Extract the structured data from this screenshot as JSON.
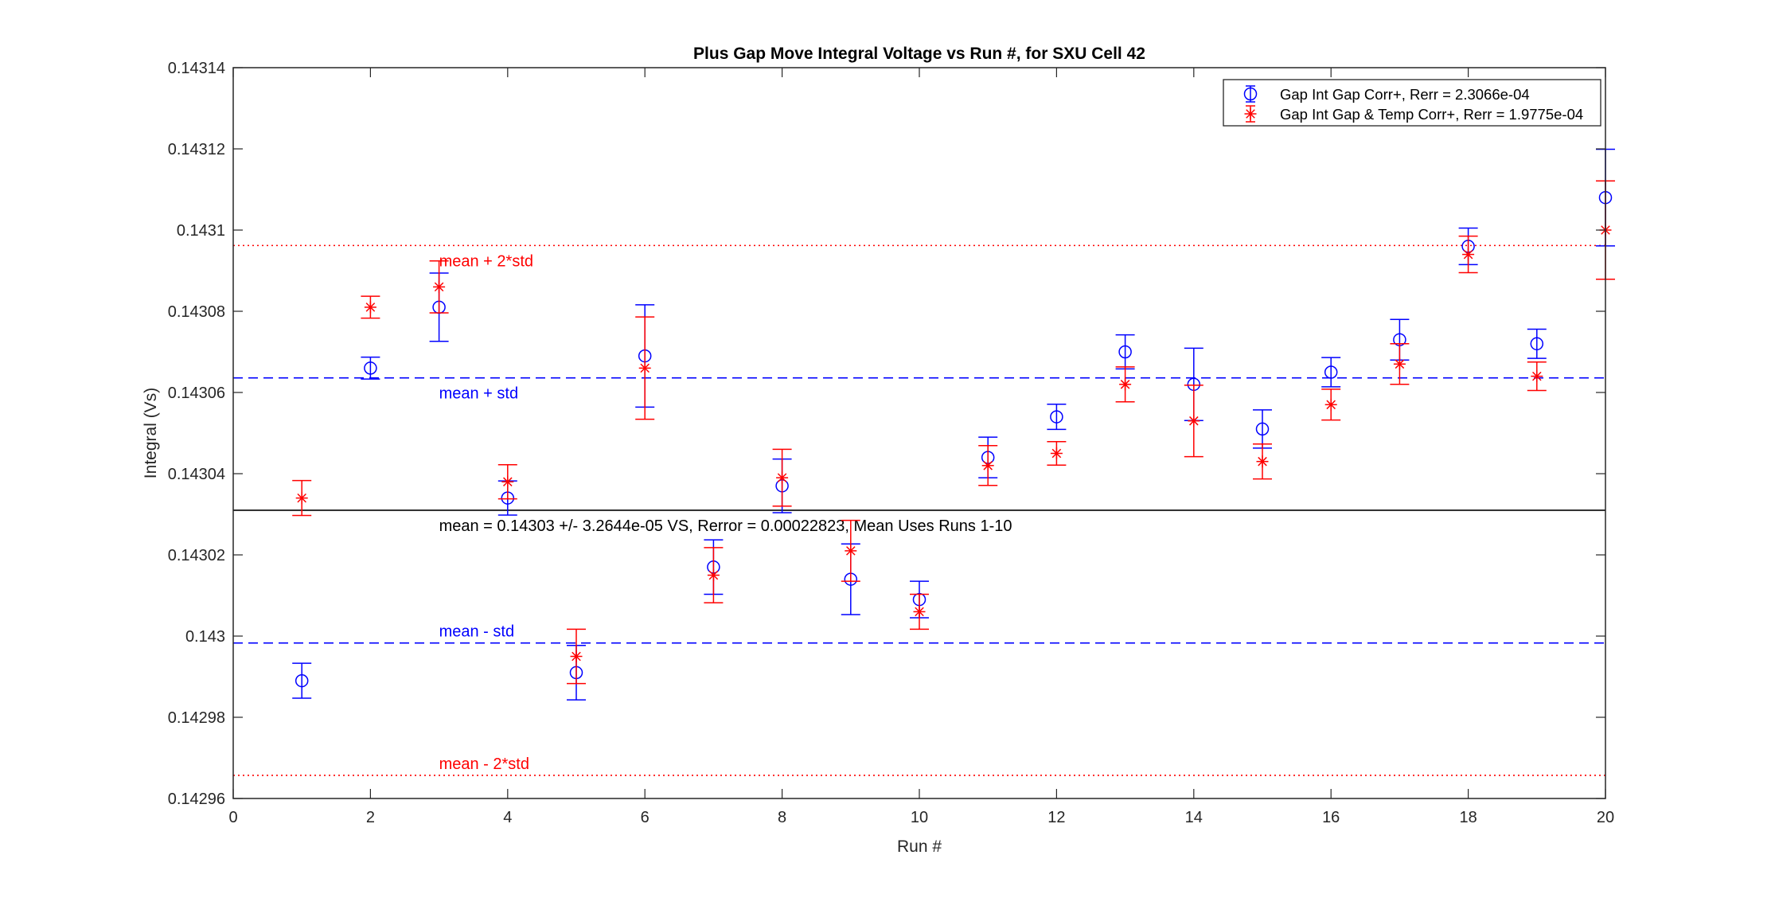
{
  "chart_data": {
    "type": "scatter",
    "title": "Plus Gap Move Integral Voltage vs Run #, for SXU Cell 42",
    "xlabel": "Run #",
    "ylabel": "Integral (Vs)",
    "xlim": [
      0,
      20
    ],
    "ylim": [
      0.14296,
      0.14314
    ],
    "xticks": [
      "0",
      "2",
      "4",
      "6",
      "8",
      "10",
      "12",
      "14",
      "16",
      "18",
      "20"
    ],
    "yticks": [
      "0.14296",
      "0.14298",
      "0.143",
      "0.14302",
      "0.14304",
      "0.14306",
      "0.14308",
      "0.1431",
      "0.14312",
      "0.14314"
    ],
    "grid": false,
    "legend_position": "top-right",
    "x": [
      1,
      2,
      3,
      4,
      5,
      6,
      7,
      8,
      9,
      10,
      11,
      12,
      13,
      14,
      15,
      16,
      17,
      18,
      19,
      20
    ],
    "series": [
      {
        "name": "Gap Int Gap Corr+, Rerr = 2.3066e-04",
        "marker": "circle",
        "color": "#0000ff",
        "values": [
          0.142989,
          0.143066,
          0.143081,
          0.143034,
          0.142991,
          0.143069,
          0.143017,
          0.143037,
          0.143014,
          0.143009,
          0.143044,
          0.143054,
          0.14307,
          0.143062,
          0.143051,
          0.143065,
          0.143073,
          0.143096,
          0.143072,
          0.143108
        ],
        "errors": [
          4.3e-06,
          2.7e-06,
          8.4e-06,
          4.2e-06,
          6.7e-06,
          1.26e-05,
          6.7e-06,
          6.6e-06,
          8.7e-06,
          4.5e-06,
          5e-06,
          3.1e-06,
          4.2e-06,
          8.9e-06,
          4.7e-06,
          3.6e-06,
          5e-06,
          4.5e-06,
          3.6e-06,
          1.19e-05
        ]
      },
      {
        "name": "Gap Int Gap & Temp  Corr+, Rerr = 1.9775e-04",
        "marker": "asterisk",
        "color": "#ff0000",
        "values": [
          0.143034,
          0.143081,
          0.143086,
          0.143038,
          0.142995,
          0.143066,
          0.143015,
          0.143039,
          0.143021,
          0.143006,
          0.143042,
          0.143045,
          0.143062,
          0.143053,
          0.143043,
          0.143057,
          0.143067,
          0.143094,
          0.143064,
          0.1431
        ],
        "errors": [
          4.3e-06,
          2.7e-06,
          6.4e-06,
          4.2e-06,
          6.7e-06,
          1.26e-05,
          6.8e-06,
          7e-06,
          7.5e-06,
          4.3e-06,
          4.9e-06,
          2.9e-06,
          4.3e-06,
          8.8e-06,
          4.3e-06,
          3.8e-06,
          5e-06,
          4.5e-06,
          3.5e-06,
          1.21e-05
        ]
      }
    ],
    "reference_lines": [
      {
        "label": "mean + 2*std",
        "value": 0.1430962,
        "color": "#ff0000",
        "style": "dotted"
      },
      {
        "label": "mean + std",
        "value": 0.1430636,
        "color": "#0000ff",
        "style": "dashed"
      },
      {
        "label": "mean = 0.14303 +/- 3.2644e-05 VS, Rerror = 0.00022823, Mean Uses Runs 1-10",
        "value": 0.143031,
        "color": "#000000",
        "style": "solid"
      },
      {
        "label": "mean - std",
        "value": 0.1429983,
        "color": "#0000ff",
        "style": "dashed"
      },
      {
        "label": "mean - 2*std",
        "value": 0.1429657,
        "color": "#ff0000",
        "style": "dotted"
      }
    ],
    "annotation_x": 3
  }
}
